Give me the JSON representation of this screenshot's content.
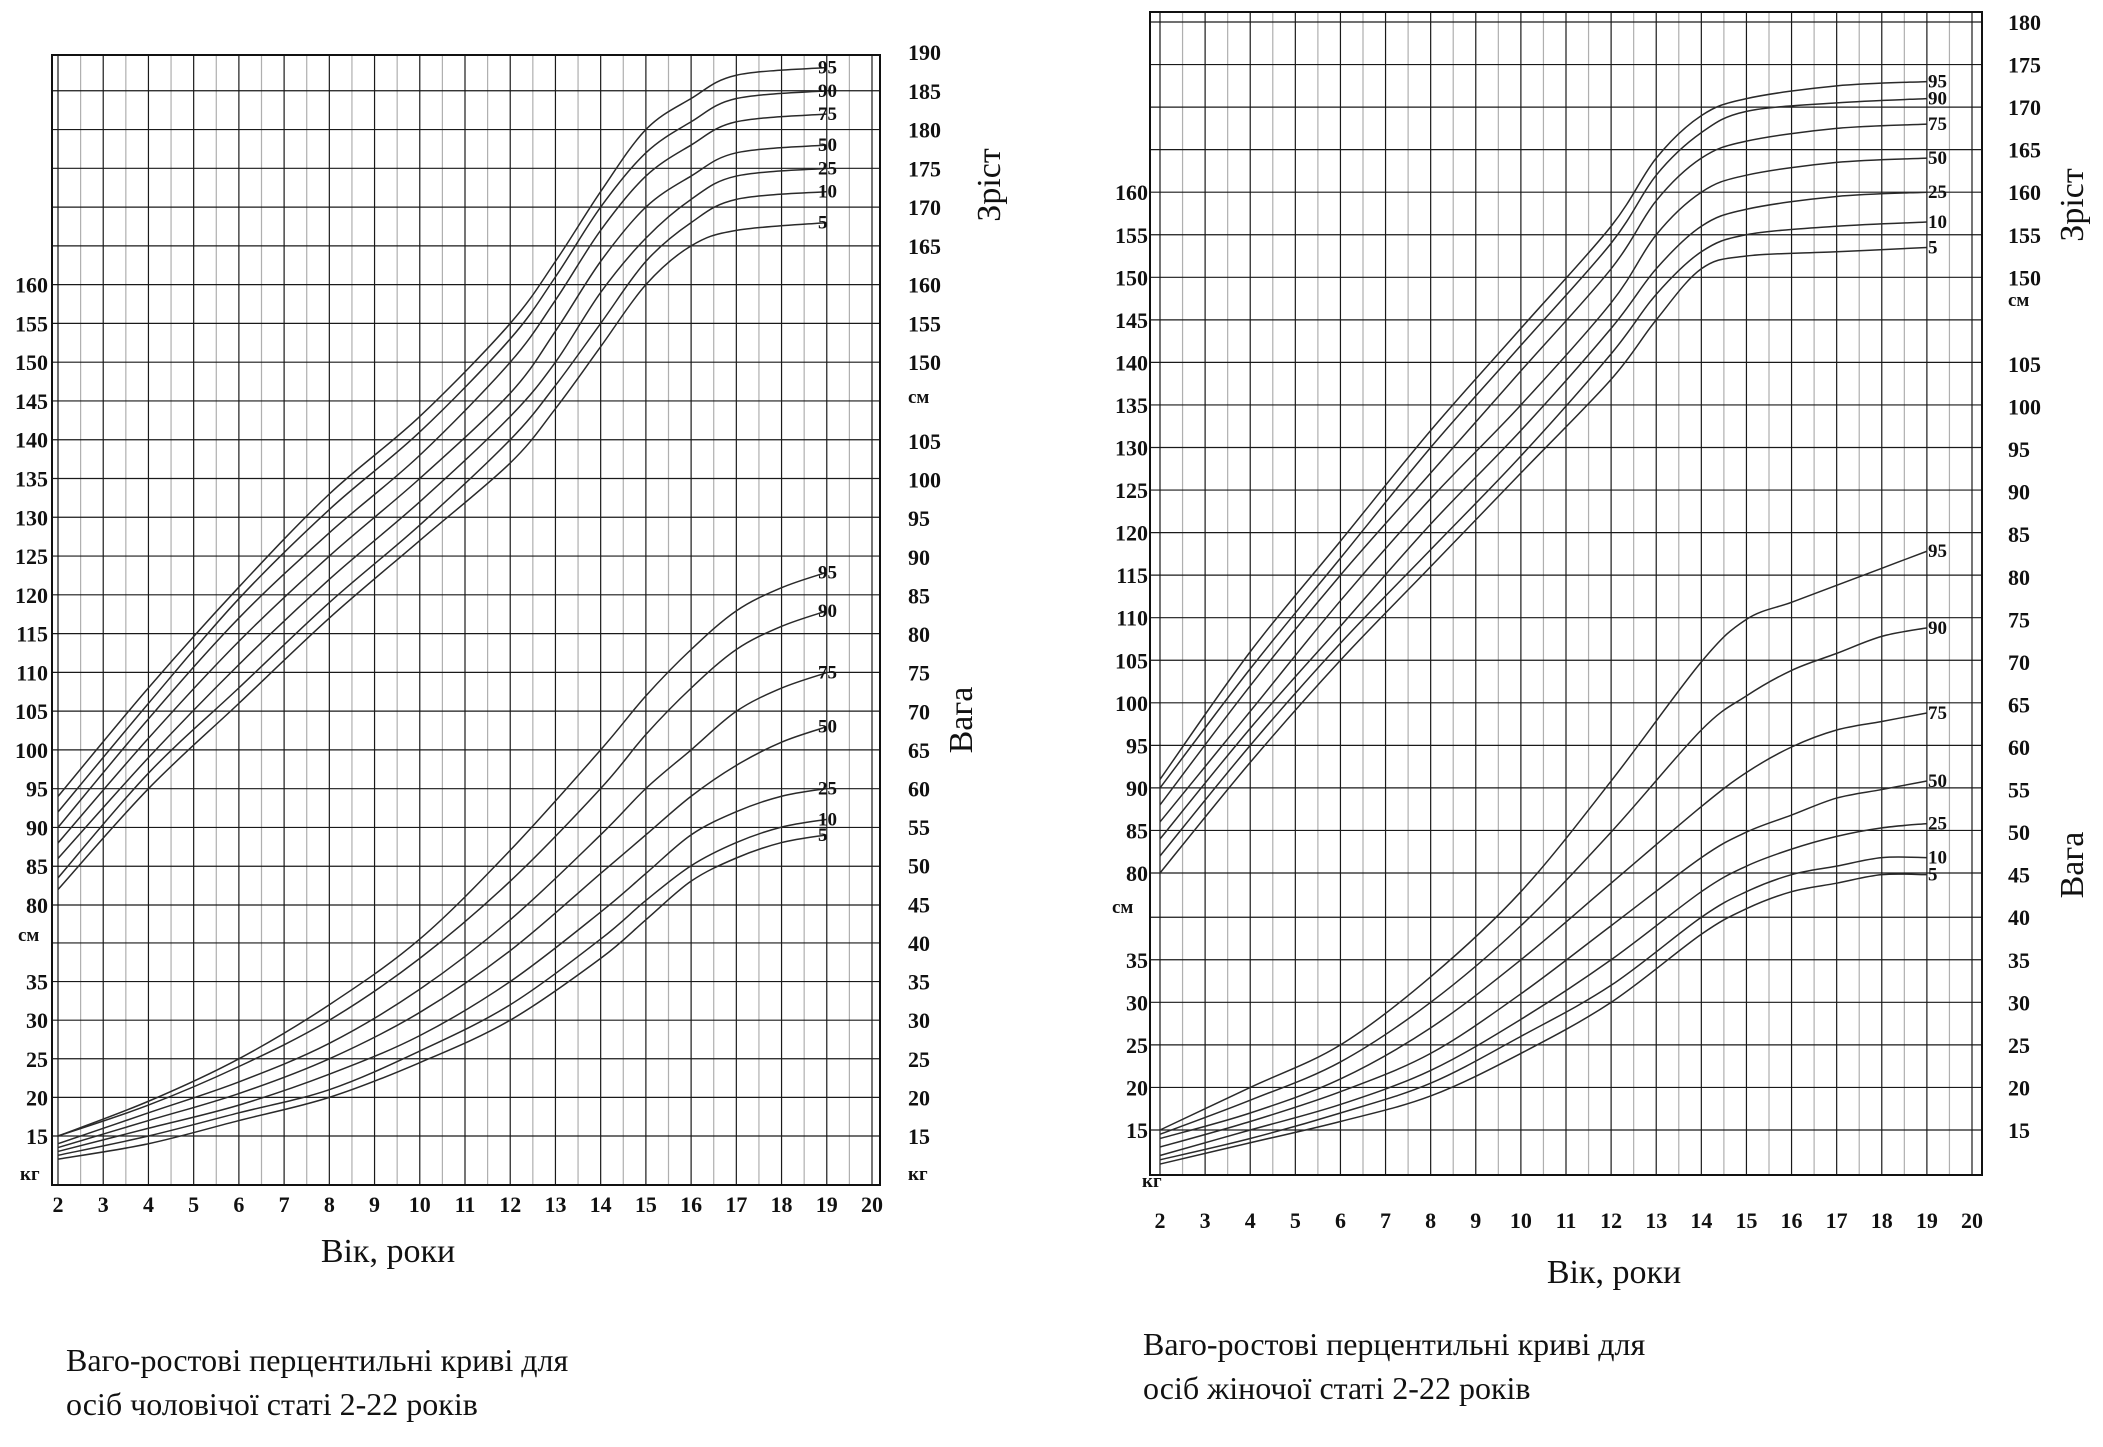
{
  "captions": {
    "male": [
      "Ваго-ростові перцентильні криві для",
      "осіб чоловічої статі 2-22 років"
    ],
    "female": [
      "Ваго-ростові перцентильні криві для",
      "осіб жіночої статі 2-22 років"
    ]
  },
  "labels": {
    "height": "Зріст",
    "weight": "Вага",
    "age": "Вік,  роки",
    "age_female": "Вік,  роки",
    "cm": "см",
    "kg": "кг"
  },
  "chart_data": [
    {
      "type": "line",
      "xlabel": "Вік,  роки",
      "x": [
        2,
        3,
        4,
        5,
        6,
        7,
        8,
        9,
        10,
        11,
        12,
        13,
        14,
        15,
        16,
        17,
        18,
        19,
        20
      ],
      "ticks": {
        "x": [
          "2",
          "3",
          "4",
          "5",
          "6",
          "7",
          "8",
          "9",
          "10",
          "11",
          "12",
          "13",
          "14",
          "15",
          "16",
          "17",
          "18",
          "19",
          "20"
        ],
        "height_left": [
          "80",
          "85",
          "90",
          "95",
          "100",
          "105",
          "110",
          "115",
          "120",
          "125",
          "130",
          "135",
          "140",
          "145",
          "150",
          "155",
          "160"
        ],
        "height_right": [
          "150",
          "155",
          "160",
          "165",
          "170",
          "175",
          "180",
          "185",
          "190"
        ],
        "weight_upper_right": [
          "45",
          "50",
          "55",
          "60",
          "65",
          "70",
          "75",
          "80",
          "85",
          "90",
          "95",
          "100",
          "105"
        ],
        "weight_left": [
          "15",
          "20",
          "25",
          "30",
          "35"
        ],
        "weight_lower_right": [
          "15",
          "20",
          "25",
          "30",
          "35",
          "40"
        ]
      },
      "height_cm": {
        "ylabel": "Зріст",
        "series": [
          {
            "name": "5",
            "x": [
              2,
              4,
              6,
              8,
              10,
              12,
              13,
              14,
              15,
              16,
              17,
              19
            ],
            "values": [
              82,
              95,
              106,
              117,
              127,
              137,
              144,
              152,
              160,
              165,
              167,
              168
            ]
          },
          {
            "name": "10",
            "x": [
              2,
              4,
              6,
              8,
              10,
              12,
              13,
              14,
              15,
              16,
              17,
              19
            ],
            "values": [
              83.5,
              97,
              108,
              119,
              129,
              140,
              147,
              155,
              163,
              168,
              171,
              172
            ]
          },
          {
            "name": "25",
            "x": [
              2,
              4,
              6,
              8,
              10,
              12,
              13,
              14,
              15,
              16,
              17,
              19
            ],
            "values": [
              86,
              99,
              111,
              122,
              132,
              143,
              150,
              159,
              166,
              171,
              174,
              175
            ]
          },
          {
            "name": "50",
            "x": [
              2,
              4,
              6,
              8,
              10,
              12,
              13,
              14,
              15,
              16,
              17,
              19
            ],
            "values": [
              88,
              101.5,
              114,
              125,
              135,
              146,
              154,
              163,
              170,
              174,
              177,
              178
            ]
          },
          {
            "name": "75",
            "x": [
              2,
              4,
              6,
              8,
              10,
              12,
              13,
              14,
              15,
              16,
              17,
              19
            ],
            "values": [
              90,
              104,
              117,
              128,
              138,
              150,
              158,
              167,
              174,
              178,
              181,
              182
            ]
          },
          {
            "name": "90",
            "x": [
              2,
              4,
              6,
              8,
              10,
              12,
              13,
              14,
              15,
              16,
              17,
              19
            ],
            "values": [
              92,
              106,
              119.5,
              131,
              141,
              153,
              161,
              170,
              177,
              181,
              184,
              185
            ]
          },
          {
            "name": "95",
            "x": [
              2,
              4,
              6,
              8,
              10,
              12,
              13,
              14,
              15,
              16,
              17,
              19
            ],
            "values": [
              94,
              108,
              121,
              133,
              143,
              155,
              163,
              172,
              180,
              184,
              187,
              188
            ]
          }
        ]
      },
      "weight_kg": {
        "ylabel": "Вага",
        "series": [
          {
            "name": "5",
            "x": [
              2,
              4,
              6,
              8,
              10,
              12,
              14,
              15,
              16,
              17,
              18,
              19
            ],
            "values": [
              12,
              14,
              17,
              20,
              24.5,
              30,
              38,
              43,
              48,
              51,
              53,
              54
            ]
          },
          {
            "name": "10",
            "x": [
              2,
              4,
              6,
              8,
              10,
              12,
              14,
              15,
              16,
              17,
              18,
              19
            ],
            "values": [
              12.5,
              15,
              18,
              21,
              26,
              32,
              40.5,
              45.5,
              50,
              53,
              55,
              56
            ]
          },
          {
            "name": "25",
            "x": [
              2,
              4,
              6,
              8,
              10,
              12,
              14,
              15,
              16,
              17,
              18,
              19
            ],
            "values": [
              13,
              16,
              19,
              23,
              28,
              35,
              44,
              49,
              54,
              57,
              59,
              60
            ]
          },
          {
            "name": "50",
            "x": [
              2,
              4,
              6,
              8,
              10,
              12,
              14,
              15,
              16,
              17,
              18,
              19
            ],
            "values": [
              13.5,
              17,
              20.5,
              25,
              31,
              39,
              49,
              54,
              59,
              63,
              66,
              68
            ]
          },
          {
            "name": "75",
            "x": [
              2,
              4,
              6,
              8,
              10,
              12,
              14,
              15,
              16,
              17,
              18,
              19
            ],
            "values": [
              14,
              18,
              22,
              27,
              34,
              43,
              54,
              60,
              65,
              70,
              73,
              75
            ]
          },
          {
            "name": "90",
            "x": [
              2,
              4,
              6,
              8,
              10,
              12,
              14,
              15,
              16,
              17,
              18,
              19
            ],
            "values": [
              15,
              19,
              24,
              30,
              38,
              48,
              60,
              67,
              73,
              78,
              81,
              83
            ]
          },
          {
            "name": "95",
            "x": [
              2,
              4,
              6,
              8,
              10,
              12,
              14,
              15,
              16,
              17,
              18,
              19
            ],
            "values": [
              15,
              19.5,
              25,
              32,
              40.5,
              52,
              65,
              72,
              78,
              83,
              86,
              88
            ]
          }
        ]
      }
    },
    {
      "type": "line",
      "xlabel": "Вік,  роки",
      "x": [
        2,
        3,
        4,
        5,
        6,
        7,
        8,
        9,
        10,
        11,
        12,
        13,
        14,
        15,
        16,
        17,
        18,
        19,
        20
      ],
      "ticks": {
        "x": [
          "2",
          "3",
          "4",
          "5",
          "6",
          "7",
          "8",
          "9",
          "10",
          "11",
          "12",
          "13",
          "14",
          "15",
          "16",
          "17",
          "18",
          "19",
          "20"
        ],
        "height_left": [
          "80",
          "85",
          "90",
          "95",
          "100",
          "105",
          "110",
          "115",
          "120",
          "125",
          "130",
          "135",
          "140",
          "145",
          "150",
          "155",
          "160"
        ],
        "height_right": [
          "150",
          "155",
          "160",
          "165",
          "170",
          "175",
          "180"
        ],
        "weight_upper_right": [
          "40",
          "45",
          "50",
          "55",
          "60",
          "65",
          "70",
          "75",
          "80",
          "85",
          "90",
          "95",
          "100",
          "105"
        ],
        "weight_left": [
          "15",
          "20",
          "25",
          "30",
          "35"
        ],
        "weight_lower_right": [
          "15",
          "20",
          "25",
          "30",
          "35"
        ]
      },
      "height_cm": {
        "ylabel": "Зріст",
        "series": [
          {
            "name": "5",
            "x": [
              2,
              4,
              6,
              8,
              10,
              12,
              13,
              14,
              15,
              17,
              19
            ],
            "values": [
              80,
              93,
              105,
              116,
              127,
              138,
              145,
              151,
              152.5,
              153,
              153.5
            ]
          },
          {
            "name": "10",
            "x": [
              2,
              4,
              6,
              8,
              10,
              12,
              13,
              14,
              15,
              17,
              19
            ],
            "values": [
              82,
              95,
              107,
              118,
              129,
              141,
              148,
              153,
              155,
              156,
              156.5
            ]
          },
          {
            "name": "25",
            "x": [
              2,
              4,
              6,
              8,
              10,
              12,
              13,
              14,
              15,
              17,
              19
            ],
            "values": [
              84,
              97,
              109,
              121,
              132,
              144,
              151,
              156,
              158,
              159.5,
              160
            ]
          },
          {
            "name": "50",
            "x": [
              2,
              4,
              6,
              8,
              10,
              12,
              13,
              14,
              15,
              17,
              19
            ],
            "values": [
              86,
              99,
              112,
              124,
              135,
              147,
              155,
              160,
              162,
              163.5,
              164
            ]
          },
          {
            "name": "75",
            "x": [
              2,
              4,
              6,
              8,
              10,
              12,
              13,
              14,
              15,
              17,
              19
            ],
            "values": [
              88,
              102,
              115,
              127,
              139,
              151,
              159,
              164,
              166,
              167.5,
              168
            ]
          },
          {
            "name": "90",
            "x": [
              2,
              4,
              6,
              8,
              10,
              12,
              13,
              14,
              15,
              17,
              19
            ],
            "values": [
              90,
              104,
              117,
              130,
              142,
              154,
              162,
              167,
              169.5,
              170.5,
              171
            ]
          },
          {
            "name": "95",
            "x": [
              2,
              4,
              6,
              8,
              10,
              12,
              13,
              14,
              15,
              17,
              19
            ],
            "values": [
              91,
              106,
              119,
              132,
              144,
              156,
              164,
              169,
              171,
              172.5,
              173
            ]
          }
        ]
      },
      "weight_kg": {
        "ylabel": "Вага",
        "series": [
          {
            "name": "5",
            "x": [
              2,
              4,
              6,
              8,
              10,
              12,
              14,
              15,
              16,
              17,
              18,
              19
            ],
            "values": [
              11,
              13.5,
              16,
              19,
              24,
              30,
              38,
              41,
              43,
              44,
              45,
              45
            ]
          },
          {
            "name": "10",
            "x": [
              2,
              4,
              6,
              8,
              10,
              12,
              14,
              15,
              16,
              17,
              18,
              19
            ],
            "values": [
              11.5,
              14,
              17,
              20.5,
              26,
              32,
              40,
              43,
              45,
              46,
              47,
              47
            ]
          },
          {
            "name": "25",
            "x": [
              2,
              4,
              6,
              8,
              10,
              12,
              14,
              15,
              16,
              17,
              18,
              19
            ],
            "values": [
              12,
              15,
              18,
              22,
              28,
              35,
              43,
              46,
              48,
              49.5,
              50.5,
              51
            ]
          },
          {
            "name": "50",
            "x": [
              2,
              4,
              6,
              8,
              10,
              12,
              14,
              15,
              16,
              17,
              18,
              19
            ],
            "values": [
              13,
              16,
              19.5,
              24,
              31,
              39,
              47,
              50,
              52,
              54,
              55,
              56
            ]
          },
          {
            "name": "75",
            "x": [
              2,
              4,
              6,
              8,
              10,
              12,
              14,
              15,
              16,
              17,
              18,
              19
            ],
            "values": [
              14,
              17,
              21,
              27,
              35,
              44,
              53,
              57,
              60,
              62,
              63,
              64
            ]
          },
          {
            "name": "90",
            "x": [
              2,
              4,
              6,
              8,
              10,
              12,
              14,
              15,
              16,
              17,
              18,
              19
            ],
            "values": [
              14.5,
              18.5,
              23,
              30,
              39,
              50,
              62,
              66,
              69,
              71,
              73,
              74
            ]
          },
          {
            "name": "95",
            "x": [
              2,
              4,
              6,
              8,
              10,
              12,
              14,
              15,
              16,
              17,
              18,
              19
            ],
            "values": [
              15,
              20,
              25,
              33,
              43,
              56,
              70,
              75,
              77,
              79,
              81,
              83
            ]
          }
        ]
      }
    }
  ]
}
